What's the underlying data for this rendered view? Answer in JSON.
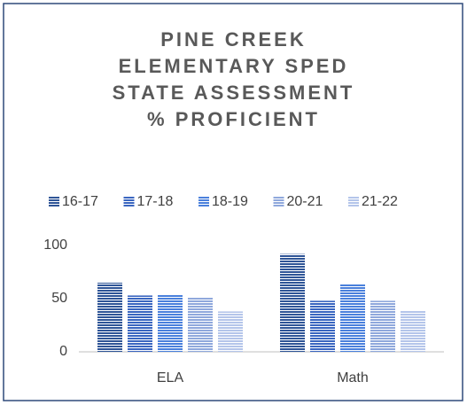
{
  "chart_data": {
    "type": "bar",
    "title": "PINE CREEK ELEMENTARY SPED STATE ASSESSMENT % PROFICIENT",
    "categories": [
      "ELA",
      "Math"
    ],
    "series": [
      {
        "name": "16-17",
        "color": "#2f5597",
        "values": [
          65,
          92
        ]
      },
      {
        "name": "17-18",
        "color": "#3a66c0",
        "values": [
          53,
          48
        ]
      },
      {
        "name": "18-19",
        "color": "#4a80dc",
        "values": [
          54,
          64
        ]
      },
      {
        "name": "20-21",
        "color": "#8fa8dc",
        "values": [
          51,
          48
        ]
      },
      {
        "name": "21-22",
        "color": "#b4c5ea",
        "values": [
          38,
          39
        ]
      }
    ],
    "ylim": [
      0,
      100
    ],
    "yticks": [
      0,
      50,
      100
    ],
    "grid": false,
    "legend": "top"
  }
}
